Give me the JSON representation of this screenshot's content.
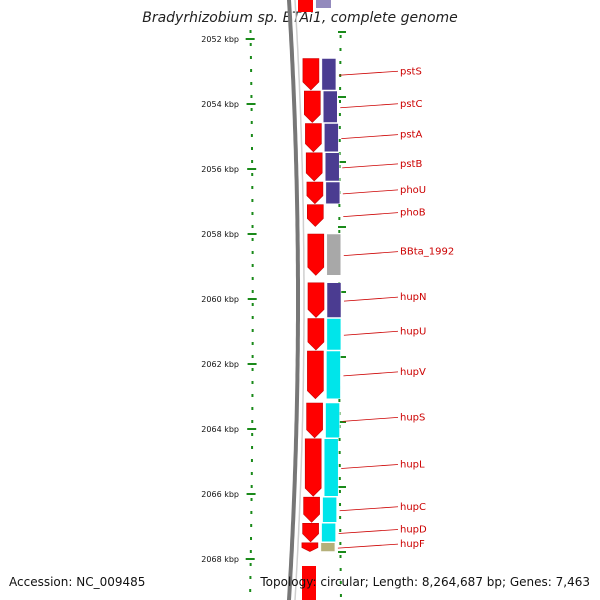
{
  "title": "Bradyrhizobium sp. BTAi1, complete genome",
  "accession": "Accession: NC_009485",
  "topology": "Topology: circular; Length: 8,264,687 bp; Genes: 7,463",
  "colors": {
    "cds": "#ff0000",
    "cog_purple": "#4b3c91",
    "cog_cyan": "#00e5ea",
    "cog_gray": "#a8a8a8",
    "cog_olive": "#b5b07a",
    "label": "#cc0000",
    "tick": "#1a8a1a",
    "backbone": "#777777"
  },
  "scale": {
    "start_kbp": 2052,
    "end_kbp": 2068,
    "ticks": [
      {
        "kbp": 2052,
        "label": "2052 kbp"
      },
      {
        "kbp": 2054,
        "label": "2054 kbp"
      },
      {
        "kbp": 2056,
        "label": "2056 kbp"
      },
      {
        "kbp": 2058,
        "label": "2058 kbp"
      },
      {
        "kbp": 2060,
        "label": "2060 kbp"
      },
      {
        "kbp": 2062,
        "label": "2062 kbp"
      },
      {
        "kbp": 2064,
        "label": "2064 kbp"
      },
      {
        "kbp": 2066,
        "label": "2066 kbp"
      },
      {
        "kbp": 2068,
        "label": "2068 kbp"
      }
    ]
  },
  "genes": [
    {
      "name": "pstS",
      "start_kbp": 2052.6,
      "end_kbp": 2053.6,
      "cog": "cog_purple"
    },
    {
      "name": "pstC",
      "start_kbp": 2053.6,
      "end_kbp": 2054.6,
      "cog": "cog_purple"
    },
    {
      "name": "pstA",
      "start_kbp": 2054.6,
      "end_kbp": 2055.5,
      "cog": "cog_purple"
    },
    {
      "name": "pstB",
      "start_kbp": 2055.5,
      "end_kbp": 2056.4,
      "cog": "cog_purple"
    },
    {
      "name": "phoU",
      "start_kbp": 2056.4,
      "end_kbp": 2057.1,
      "cog": "cog_purple"
    },
    {
      "name": "phoB",
      "start_kbp": 2057.1,
      "end_kbp": 2057.8,
      "cog": null
    },
    {
      "name": "BBta_1992",
      "start_kbp": 2058.0,
      "end_kbp": 2059.3,
      "cog": "cog_gray"
    },
    {
      "name": "hupN",
      "start_kbp": 2059.5,
      "end_kbp": 2060.6,
      "cog": "cog_purple"
    },
    {
      "name": "hupU",
      "start_kbp": 2060.6,
      "end_kbp": 2061.6,
      "cog": "cog_cyan"
    },
    {
      "name": "hupV",
      "start_kbp": 2061.6,
      "end_kbp": 2063.1,
      "cog": "cog_cyan"
    },
    {
      "name": "hupS",
      "start_kbp": 2063.2,
      "end_kbp": 2064.3,
      "cog": "cog_cyan"
    },
    {
      "name": "hupL",
      "start_kbp": 2064.3,
      "end_kbp": 2066.1,
      "cog": "cog_cyan"
    },
    {
      "name": "hupC",
      "start_kbp": 2066.1,
      "end_kbp": 2066.9,
      "cog": "cog_cyan"
    },
    {
      "name": "hupD",
      "start_kbp": 2066.9,
      "end_kbp": 2067.5,
      "cog": "cog_cyan"
    },
    {
      "name": "hupF",
      "start_kbp": 2067.5,
      "end_kbp": 2067.8,
      "cog": "cog_olive"
    }
  ]
}
